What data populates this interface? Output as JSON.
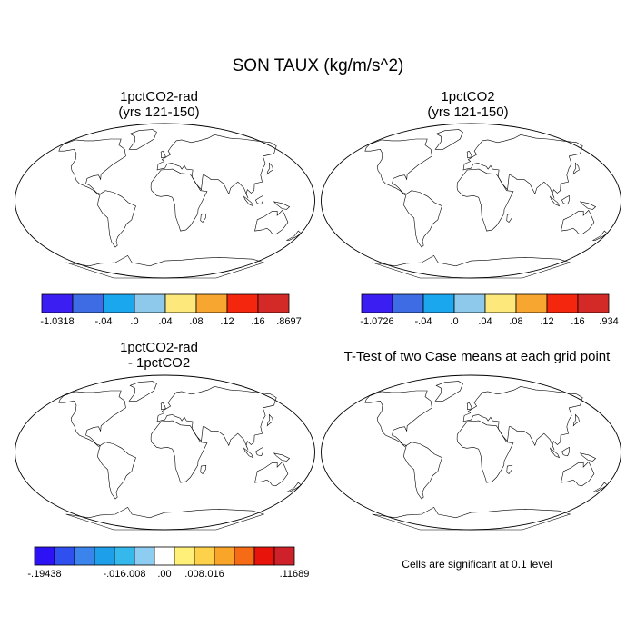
{
  "title": "SON TAUX (kg/m/s^2)",
  "panels": [
    {
      "id": "a",
      "title_line1": "1pctCO2-rad",
      "title_line2": "(yrs 121-150)"
    },
    {
      "id": "b",
      "title_line1": "1pctCO2",
      "title_line2": "(yrs 121-150)"
    },
    {
      "id": "c",
      "title_line1": "1pctCO2-rad",
      "title_line2": "- 1pctCO2"
    },
    {
      "id": "d",
      "title_line1": "T-Test of two Case means at each grid point",
      "title_line2": ""
    }
  ],
  "colorbars": [
    {
      "id": "a",
      "colors": [
        "#3b1ff2",
        "#3d6ce4",
        "#1aa7ee",
        "#8ec8ea",
        "#fde97b",
        "#f7a630",
        "#f4260e",
        "#d42a27"
      ],
      "labels": [
        "-1.0318",
        "-.04",
        ".0",
        ".04",
        ".08",
        ".12",
        ".16",
        ".8697"
      ]
    },
    {
      "id": "b",
      "colors": [
        "#3b1ff2",
        "#3d6ce4",
        "#1aa7ee",
        "#8ec8ea",
        "#fde97b",
        "#f7a630",
        "#f4260e",
        "#d42a27"
      ],
      "labels": [
        "-1.0726",
        "-.04",
        ".0",
        ".04",
        ".08",
        ".12",
        ".16",
        ".934"
      ]
    },
    {
      "id": "c",
      "colors": [
        "#2d12f5",
        "#2f4fee",
        "#3a84ec",
        "#1d9fe9",
        "#35b8ec",
        "#8ecdf2",
        "#ffffff",
        "#fff07a",
        "#fdd24a",
        "#f9a52a",
        "#f56b16",
        "#e8140c",
        "#cf2129"
      ],
      "labels": [
        "-.19438",
        "-.016",
        "-.008",
        ".00",
        ".008",
        ".016",
        ".11689"
      ]
    }
  ],
  "significance_color": "#ee0000",
  "note": "Cells are significant at 0.1 level"
}
